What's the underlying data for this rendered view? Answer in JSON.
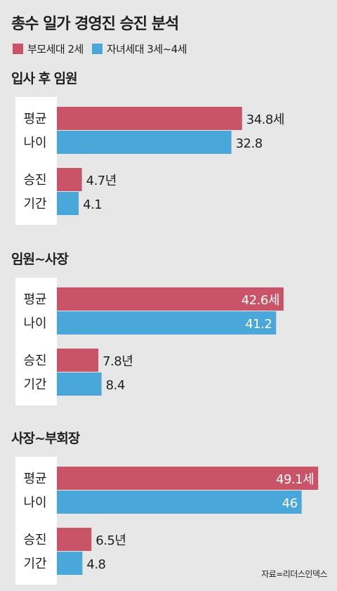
{
  "title": "총수 일가 경영진 승진 분석",
  "source": "자료=리더스인덱스",
  "colors": {
    "parent": "#c95468",
    "child": "#4aa7d9",
    "background": "#e7e7e7",
    "panel": "#ffffff"
  },
  "chart_data": {
    "type": "bar",
    "orientation": "horizontal",
    "legend_position": "top-left",
    "series": [
      {
        "key": "parent",
        "name": "부모세대 2세"
      },
      {
        "key": "child",
        "name": "자녀세대 3세~4세"
      }
    ],
    "xlim": [
      0,
      50
    ],
    "panels": [
      {
        "title": "입사 후 임원",
        "groups": [
          {
            "label": [
              "평균",
              "나이"
            ],
            "values": [
              34.8,
              32.8
            ],
            "value_labels": [
              "34.8세",
              "32.8"
            ]
          },
          {
            "label": [
              "승진",
              "기간"
            ],
            "values": [
              4.7,
              4.1
            ],
            "value_labels": [
              "4.7년",
              "4.1"
            ]
          }
        ]
      },
      {
        "title": "임원~사장",
        "groups": [
          {
            "label": [
              "평균",
              "나이"
            ],
            "values": [
              42.6,
              41.2
            ],
            "value_labels": [
              "42.6세",
              "41.2"
            ]
          },
          {
            "label": [
              "승진",
              "기간"
            ],
            "values": [
              7.8,
              8.4
            ],
            "value_labels": [
              "7.8년",
              "8.4"
            ]
          }
        ]
      },
      {
        "title": "사장~부회장",
        "groups": [
          {
            "label": [
              "평균",
              "나이"
            ],
            "values": [
              49.1,
              46
            ],
            "value_labels": [
              "49.1세",
              "46"
            ]
          },
          {
            "label": [
              "승진",
              "기간"
            ],
            "values": [
              6.5,
              4.8
            ],
            "value_labels": [
              "6.5년",
              "4.8"
            ]
          }
        ]
      }
    ]
  }
}
